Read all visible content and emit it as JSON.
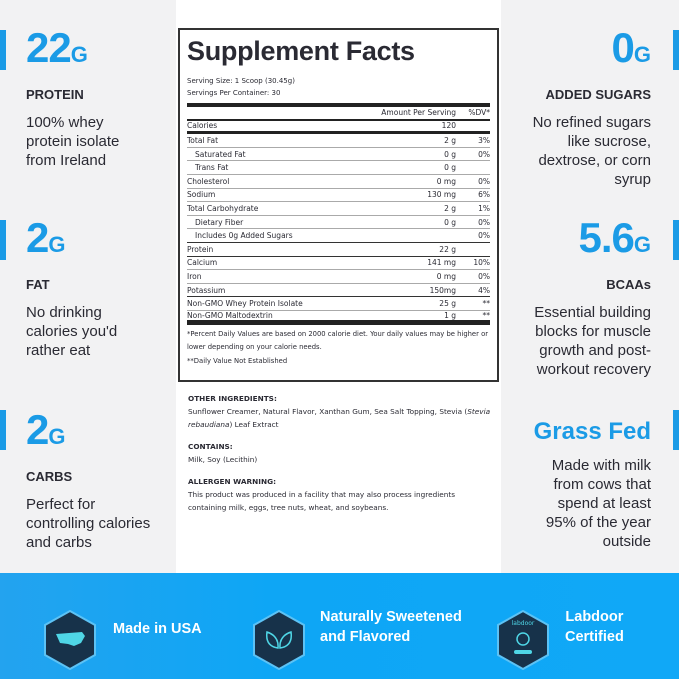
{
  "left": [
    {
      "value": "22",
      "unit": "G",
      "label": "PROTEIN",
      "desc": "100% whey protein isolate from Ireland"
    },
    {
      "value": "2",
      "unit": "G",
      "label": "FAT",
      "desc": "No drinking calories you'd rather eat"
    },
    {
      "value": "2",
      "unit": "G",
      "label": "CARBS",
      "desc": "Perfect for controlling calories and carbs"
    }
  ],
  "right": [
    {
      "value": "0",
      "unit": "G",
      "label": "ADDED SUGARS",
      "desc": "No refined sugars like sucrose, dextrose, or corn syrup"
    },
    {
      "value": "5.6",
      "unit": "G",
      "label": "BCAAs",
      "desc": "Essential building blocks for muscle growth and post-workout recovery"
    },
    {
      "value": "Grass Fed",
      "unit": "",
      "label": "",
      "desc": "Made with milk from cows that spend at least 95% of the year outside"
    }
  ],
  "facts": {
    "title": "Supplement Facts",
    "serving_size": "Serving Size: 1 Scoop (30.45g)",
    "servings": "Servings Per Container: 30",
    "col_amount": "Amount Per Serving",
    "col_dv": "%DV*",
    "rows": [
      {
        "name": "Calories",
        "amount": "120",
        "dv": ""
      },
      {
        "name": "Total Fat",
        "amount": "2 g",
        "dv": "3%"
      },
      {
        "name": "Saturated Fat",
        "amount": "0 g",
        "dv": "0%"
      },
      {
        "name": "Trans Fat",
        "amount": "0 g",
        "dv": ""
      },
      {
        "name": "Cholesterol",
        "amount": "0 mg",
        "dv": "0%"
      },
      {
        "name": "Sodium",
        "amount": "130 mg",
        "dv": "6%"
      },
      {
        "name": "Total Carbohydrate",
        "amount": "2 g",
        "dv": "1%"
      },
      {
        "name": "Dietary Fiber",
        "amount": "0 g",
        "dv": "0%"
      },
      {
        "name": "Includes 0g Added Sugars",
        "amount": "",
        "dv": "0%"
      },
      {
        "name": "Protein",
        "amount": "22 g",
        "dv": ""
      },
      {
        "name": "Calcium",
        "amount": "141 mg",
        "dv": "10%"
      },
      {
        "name": "Iron",
        "amount": "0 mg",
        "dv": "0%"
      },
      {
        "name": "Potassium",
        "amount": "150mg",
        "dv": "4%"
      },
      {
        "name": "Non-GMO Whey Protein Isolate",
        "amount": "25 g",
        "dv": "**"
      },
      {
        "name": "Non-GMO Maltodextrin",
        "amount": "1 g",
        "dv": "**"
      }
    ],
    "footnote1": "*Percent Daily Values are based on 2000 calorie diet. Your daily values may be higher or lower depending on your calorie needs.",
    "footnote2": "**Daily Value Not Established"
  },
  "ingredients": {
    "other_title": "OTHER INGREDIENTS:",
    "other_a": "Sunflower Creamer, Natural Flavor, Xanthan Gum, Sea Salt Topping, Stevia (",
    "other_italic": "Stevia rebaudiana",
    "other_b": ") Leaf Extract",
    "contains_title": "CONTAINS:",
    "contains": "Milk, Soy (Lecithin)",
    "allergen_title": "ALLERGEN WARNING:",
    "allergen": "This product was produced in a facility that may also process ingredients containing milk, eggs, tree nuts, wheat, and soybeans."
  },
  "badges": [
    {
      "label": "Made in USA",
      "icon": "usa-map-icon"
    },
    {
      "label1": "Naturally Sweetened",
      "label2": "and Flavored",
      "icon": "leaves-icon"
    },
    {
      "label1": "Labdoor",
      "label2": "Certified",
      "icon": "labdoor-icon",
      "logo_text": "labdoor"
    }
  ],
  "colors": {
    "accent": "#1b9be6",
    "badge_bg": "#17324a",
    "badge_icon": "#4fd6e6"
  }
}
